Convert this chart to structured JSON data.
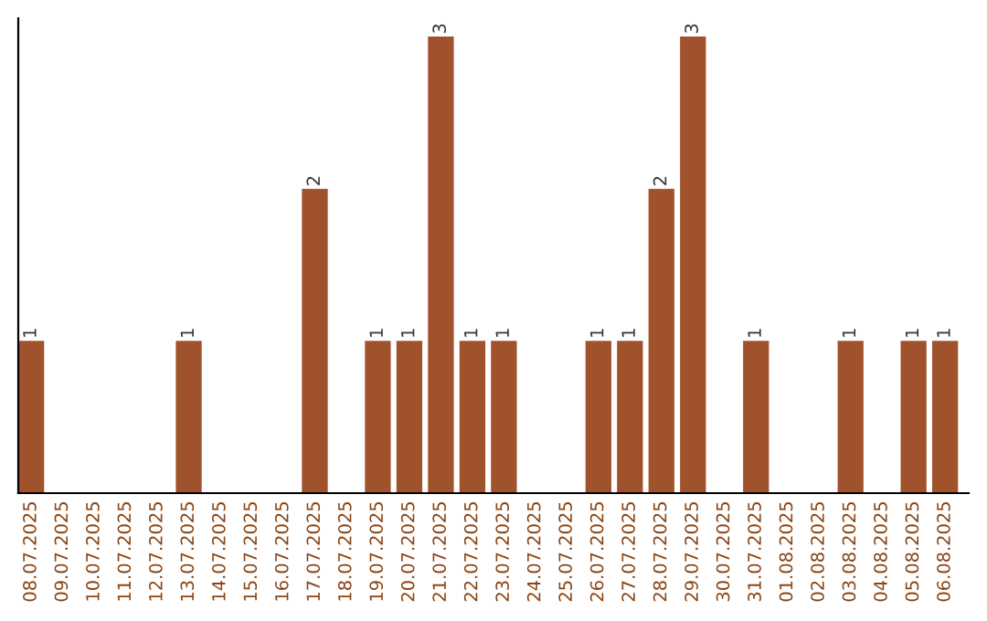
{
  "chart_data": {
    "type": "bar",
    "categories": [
      "08.07.2025",
      "09.07.2025",
      "10.07.2025",
      "11.07.2025",
      "12.07.2025",
      "13.07.2025",
      "14.07.2025",
      "15.07.2025",
      "16.07.2025",
      "17.07.2025",
      "18.07.2025",
      "19.07.2025",
      "20.07.2025",
      "21.07.2025",
      "22.07.2025",
      "23.07.2025",
      "24.07.2025",
      "25.07.2025",
      "26.07.2025",
      "27.07.2025",
      "28.07.2025",
      "29.07.2025",
      "30.07.2025",
      "31.07.2025",
      "01.08.2025",
      "02.08.2025",
      "03.08.2025",
      "04.08.2025",
      "05.08.2025",
      "06.08.2025"
    ],
    "values": [
      1,
      0,
      0,
      0,
      0,
      1,
      0,
      0,
      0,
      2,
      0,
      1,
      1,
      3,
      1,
      1,
      0,
      0,
      1,
      1,
      2,
      3,
      0,
      1,
      0,
      0,
      1,
      0,
      1,
      1
    ],
    "value_labels": [
      "1",
      null,
      null,
      null,
      null,
      "1",
      null,
      null,
      null,
      "2",
      null,
      "1",
      "1",
      "3",
      "1",
      "1",
      null,
      null,
      "1",
      "1",
      "2",
      "3",
      null,
      "1",
      null,
      null,
      "1",
      null,
      "1",
      "1"
    ],
    "color": "#a0522d",
    "grid": false,
    "legend": false
  }
}
